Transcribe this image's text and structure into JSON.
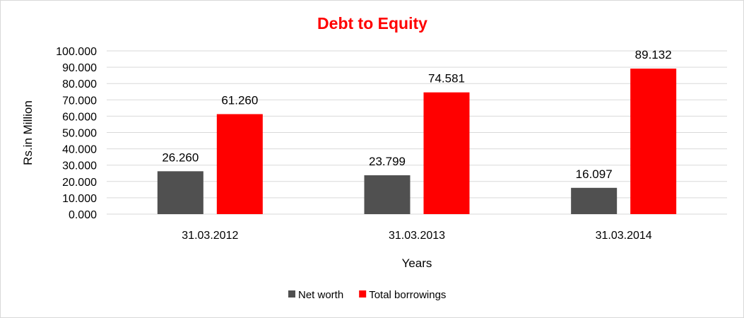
{
  "chart_data": {
    "type": "bar",
    "title": "Debt to Equity",
    "xlabel": "Years",
    "ylabel": "Rs.in Million",
    "categories": [
      "31.03.2012",
      "31.03.2013",
      "31.03.2014"
    ],
    "series": [
      {
        "name": "Net worth",
        "values": [
          26.26,
          23.799,
          16.097
        ],
        "labels": [
          "26.260",
          "23.799",
          "16.097"
        ],
        "color": "#505050"
      },
      {
        "name": "Total borrowings",
        "values": [
          61.26,
          74.581,
          89.132
        ],
        "labels": [
          "61.260",
          "74.581",
          "89.132"
        ],
        "color": "#ff0000"
      }
    ],
    "ylim": [
      0,
      100
    ],
    "yticks": [
      0,
      10,
      20,
      30,
      40,
      50,
      60,
      70,
      80,
      90,
      100
    ],
    "ytick_labels": [
      "0.000",
      "10.000",
      "20.000",
      "30.000",
      "40.000",
      "50.000",
      "60.000",
      "70.000",
      "80.000",
      "90.000",
      "100.000"
    ],
    "grid": true,
    "legend_position": "bottom",
    "title_color": "#ff0000",
    "grid_color": "#d9d9d9"
  }
}
